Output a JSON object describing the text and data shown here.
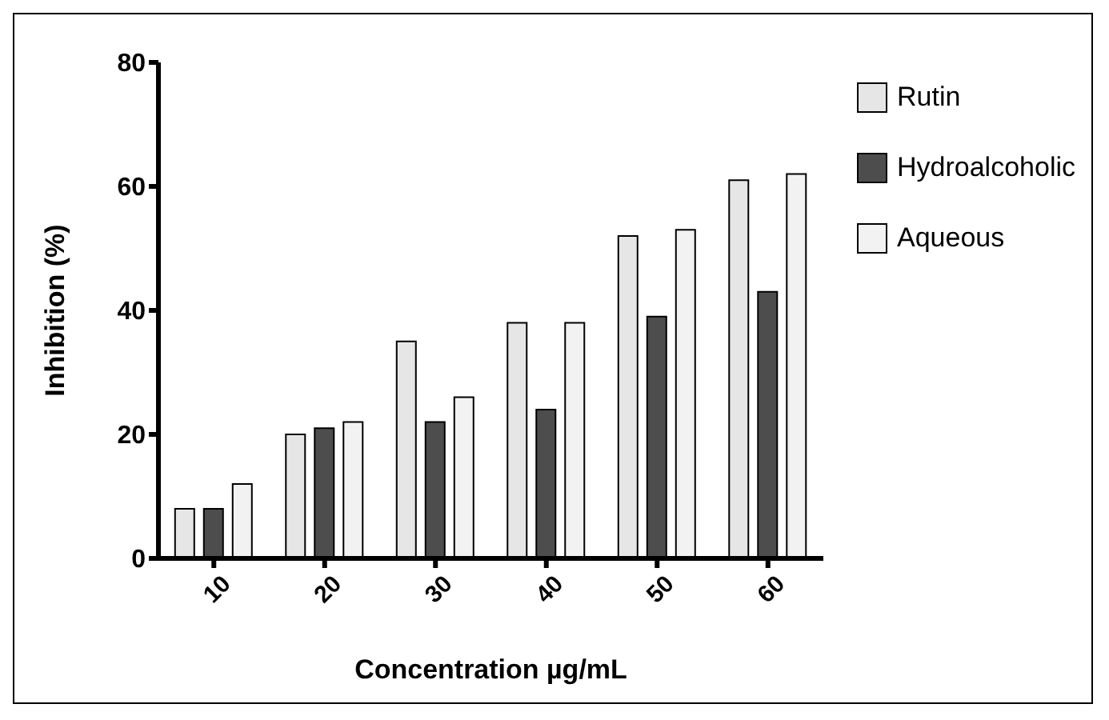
{
  "chart_data": {
    "type": "bar",
    "xlabel": "Concentration µg/mL",
    "ylabel": "Inhibition (%)",
    "categories": [
      "10",
      "20",
      "30",
      "40",
      "50",
      "60"
    ],
    "series": [
      {
        "name": "Rutin",
        "color": "#e6e6e6",
        "values": [
          8,
          20,
          35,
          38,
          52,
          61
        ]
      },
      {
        "name": "Hydroalcoholic",
        "color": "#4d4d4d",
        "values": [
          8,
          21,
          22,
          24,
          39,
          43
        ]
      },
      {
        "name": "Aqueous",
        "color": "#f2f2f2",
        "values": [
          12,
          22,
          26,
          38,
          53,
          62
        ]
      }
    ],
    "ylim": [
      0,
      80
    ],
    "yticks": [
      0,
      20,
      40,
      60,
      80
    ],
    "grid": false,
    "legend": "top right"
  }
}
